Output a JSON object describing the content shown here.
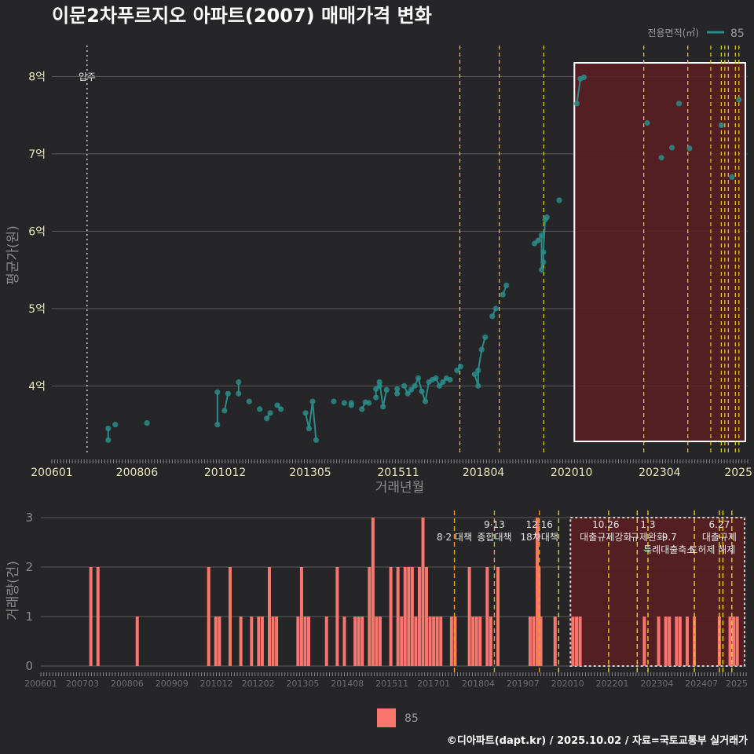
{
  "title": "이문2차푸르지오 아파트(2007) 매매가격 변화",
  "legend_top": {
    "label": "전용면적(㎡)",
    "value": "85"
  },
  "legend_bottom": {
    "value": "85"
  },
  "credit": "©디아파트(dapt.kr) / 2025.10.02 / 자료=국토교통부 실거래가",
  "colors": {
    "series": "#2a8c88",
    "bars": "#f8766d",
    "background": "#262628",
    "highlight": "#5c1f22",
    "policy_line": "#e8d020",
    "policy_line_bottom": "#f0a020"
  },
  "chart_data": [
    {
      "type": "scatter",
      "ylabel": "평균가(원)",
      "xlabel": "거래년월",
      "x_ticks": [
        "200601",
        "200806",
        "201012",
        "201305",
        "201511",
        "201804",
        "202010",
        "202304",
        "2025"
      ],
      "y_ticks": [
        "4억",
        "5억",
        "6억",
        "7억",
        "8억"
      ],
      "ylim": [
        3.1,
        8.4
      ],
      "xlim": [
        2006.0,
        2025.75
      ],
      "move_in": {
        "x": 2007.0,
        "label": "입주"
      },
      "highlight": {
        "x0": 2020.83,
        "x1": 2025.75
      },
      "policy_lines_x": [
        2017.58,
        2018.7,
        2019.96,
        2022.8,
        2024.05,
        2024.7,
        2025.0,
        2025.1,
        2025.2,
        2025.4,
        2025.5
      ],
      "series": [
        {
          "name": "85",
          "points": [
            [
              2007.6,
              3.3
            ],
            [
              2007.6,
              3.45
            ],
            [
              2007.8,
              3.5
            ],
            [
              2008.7,
              3.52
            ],
            [
              2010.7,
              3.5
            ],
            [
              2010.7,
              3.92
            ],
            [
              2010.9,
              3.68
            ],
            [
              2011.0,
              3.9
            ],
            [
              2011.3,
              3.9
            ],
            [
              2011.3,
              4.05
            ],
            [
              2011.6,
              3.8
            ],
            [
              2011.9,
              3.7
            ],
            [
              2012.1,
              3.58
            ],
            [
              2012.2,
              3.65
            ],
            [
              2012.4,
              3.75
            ],
            [
              2012.5,
              3.7
            ],
            [
              2013.2,
              3.65
            ],
            [
              2013.3,
              3.45
            ],
            [
              2013.4,
              3.8
            ],
            [
              2013.5,
              3.3
            ],
            [
              2014.0,
              3.8
            ],
            [
              2014.3,
              3.78
            ],
            [
              2014.5,
              3.75
            ],
            [
              2014.5,
              3.78
            ],
            [
              2014.8,
              3.7
            ],
            [
              2014.9,
              3.79
            ],
            [
              2015.0,
              3.78
            ],
            [
              2015.2,
              3.85
            ],
            [
              2015.2,
              3.96
            ],
            [
              2015.3,
              4.0
            ],
            [
              2015.3,
              4.05
            ],
            [
              2015.4,
              3.73
            ],
            [
              2015.5,
              3.95
            ],
            [
              2015.8,
              3.9
            ],
            [
              2015.8,
              3.96
            ],
            [
              2016.0,
              4.0
            ],
            [
              2016.1,
              3.9
            ],
            [
              2016.2,
              3.95
            ],
            [
              2016.3,
              4.0
            ],
            [
              2016.4,
              4.1
            ],
            [
              2016.5,
              3.93
            ],
            [
              2016.6,
              3.8
            ],
            [
              2016.7,
              4.05
            ],
            [
              2016.8,
              4.08
            ],
            [
              2016.9,
              4.1
            ],
            [
              2017.0,
              4.0
            ],
            [
              2017.1,
              4.05
            ],
            [
              2017.2,
              4.1
            ],
            [
              2017.3,
              4.08
            ],
            [
              2017.5,
              4.2
            ],
            [
              2017.6,
              4.25
            ],
            [
              2018.0,
              4.15
            ],
            [
              2018.1,
              4.0
            ],
            [
              2018.1,
              4.2
            ],
            [
              2018.2,
              4.47
            ],
            [
              2018.3,
              4.63
            ],
            [
              2018.5,
              4.9
            ],
            [
              2018.6,
              5.0
            ],
            [
              2018.8,
              5.18
            ],
            [
              2018.9,
              5.3
            ],
            [
              2019.7,
              5.84
            ],
            [
              2019.8,
              5.88
            ],
            [
              2019.9,
              5.95
            ],
            [
              2019.9,
              5.5
            ],
            [
              2019.95,
              5.6
            ],
            [
              2019.95,
              5.73
            ],
            [
              2020.0,
              6.15
            ],
            [
              2020.05,
              6.18
            ],
            [
              2020.4,
              6.4
            ],
            [
              2020.9,
              7.65
            ],
            [
              2021.0,
              7.97
            ],
            [
              2021.1,
              7.99
            ],
            [
              2022.9,
              7.4
            ],
            [
              2023.3,
              6.95
            ],
            [
              2023.6,
              7.08
            ],
            [
              2023.8,
              7.65
            ],
            [
              2024.1,
              7.07
            ],
            [
              2025.0,
              7.37
            ],
            [
              2025.3,
              6.7
            ],
            [
              2025.5,
              7.7
            ]
          ]
        }
      ]
    },
    {
      "type": "bar",
      "ylabel": "거래량(건)",
      "y_ticks": [
        "0",
        "1",
        "2",
        "3"
      ],
      "ylim": [
        0,
        3
      ],
      "x_ticks": [
        "200601",
        "200703",
        "200806",
        "200909",
        "201012",
        "201202",
        "201305",
        "201408",
        "201511",
        "201701",
        "201804",
        "201907",
        "202010",
        "202201",
        "202304",
        "202407",
        "2025"
      ],
      "highlight": {
        "x0": 2020.83,
        "x1": 2025.75
      },
      "policy_lines_x": [
        2017.58,
        2018.7,
        2019.96,
        2020.5,
        2021.9,
        2022.7,
        2023.0,
        2024.3,
        2025.0,
        2025.1,
        2025.35
      ],
      "annotations": [
        {
          "label": "8·2 대책",
          "x": 2017.58,
          "row": 1
        },
        {
          "label": "9·13",
          "x": 2018.7,
          "row": 0
        },
        {
          "label": "종합대책",
          "x": 2018.7,
          "row": 1
        },
        {
          "label": "12·16",
          "x": 2019.96,
          "row": 0
        },
        {
          "label": "18차대책",
          "x": 2019.96,
          "row": 1
        },
        {
          "label": "10.26",
          "x": 2021.82,
          "row": 0
        },
        {
          "label": "대출규제강화",
          "x": 2021.82,
          "row": 1
        },
        {
          "label": "1.3",
          "x": 2023.0,
          "row": 0
        },
        {
          "label": "규제완화",
          "x": 2023.0,
          "row": 1
        },
        {
          "label": "9.7",
          "x": 2023.6,
          "row": 1
        },
        {
          "label": "특례대출축소",
          "x": 2023.6,
          "row": 2
        },
        {
          "label": "6.27",
          "x": 2025.0,
          "row": 0
        },
        {
          "label": "대출규제",
          "x": 2025.0,
          "row": 1
        },
        {
          "label": "토허제 해제",
          "x": 2024.8,
          "row": 2
        }
      ],
      "series": [
        {
          "name": "85",
          "bars": [
            [
              2007.4,
              2
            ],
            [
              2007.6,
              2
            ],
            [
              2008.7,
              1
            ],
            [
              2010.7,
              2
            ],
            [
              2010.9,
              1
            ],
            [
              2011.0,
              1
            ],
            [
              2011.3,
              2
            ],
            [
              2011.6,
              1
            ],
            [
              2011.9,
              1
            ],
            [
              2012.1,
              1
            ],
            [
              2012.2,
              1
            ],
            [
              2012.4,
              2
            ],
            [
              2012.5,
              1
            ],
            [
              2012.6,
              1
            ],
            [
              2013.2,
              1
            ],
            [
              2013.3,
              2
            ],
            [
              2013.4,
              1
            ],
            [
              2013.5,
              1
            ],
            [
              2014.0,
              1
            ],
            [
              2014.3,
              2
            ],
            [
              2014.5,
              1
            ],
            [
              2014.8,
              1
            ],
            [
              2014.9,
              1
            ],
            [
              2015.0,
              1
            ],
            [
              2015.2,
              2
            ],
            [
              2015.3,
              3
            ],
            [
              2015.4,
              1
            ],
            [
              2015.5,
              1
            ],
            [
              2015.8,
              2
            ],
            [
              2016.0,
              2
            ],
            [
              2016.1,
              1
            ],
            [
              2016.2,
              2
            ],
            [
              2016.3,
              2
            ],
            [
              2016.4,
              2
            ],
            [
              2016.5,
              1
            ],
            [
              2016.6,
              2
            ],
            [
              2016.7,
              3
            ],
            [
              2016.8,
              2
            ],
            [
              2016.9,
              1
            ],
            [
              2017.0,
              1
            ],
            [
              2017.1,
              1
            ],
            [
              2017.2,
              1
            ],
            [
              2017.5,
              1
            ],
            [
              2017.6,
              1
            ],
            [
              2018.0,
              2
            ],
            [
              2018.1,
              1
            ],
            [
              2018.2,
              1
            ],
            [
              2018.3,
              1
            ],
            [
              2018.5,
              2
            ],
            [
              2018.6,
              1
            ],
            [
              2018.8,
              2
            ],
            [
              2019.7,
              1
            ],
            [
              2019.8,
              1
            ],
            [
              2019.9,
              3
            ],
            [
              2019.95,
              2
            ],
            [
              2020.0,
              1
            ],
            [
              2020.4,
              1
            ],
            [
              2020.9,
              1
            ],
            [
              2021.0,
              1
            ],
            [
              2021.1,
              1
            ],
            [
              2022.9,
              1
            ],
            [
              2023.3,
              1
            ],
            [
              2023.5,
              1
            ],
            [
              2023.6,
              1
            ],
            [
              2023.8,
              1
            ],
            [
              2023.9,
              1
            ],
            [
              2024.1,
              1
            ],
            [
              2024.3,
              1
            ],
            [
              2025.0,
              1
            ],
            [
              2025.3,
              1
            ],
            [
              2025.4,
              1
            ],
            [
              2025.5,
              1
            ]
          ]
        }
      ]
    }
  ]
}
